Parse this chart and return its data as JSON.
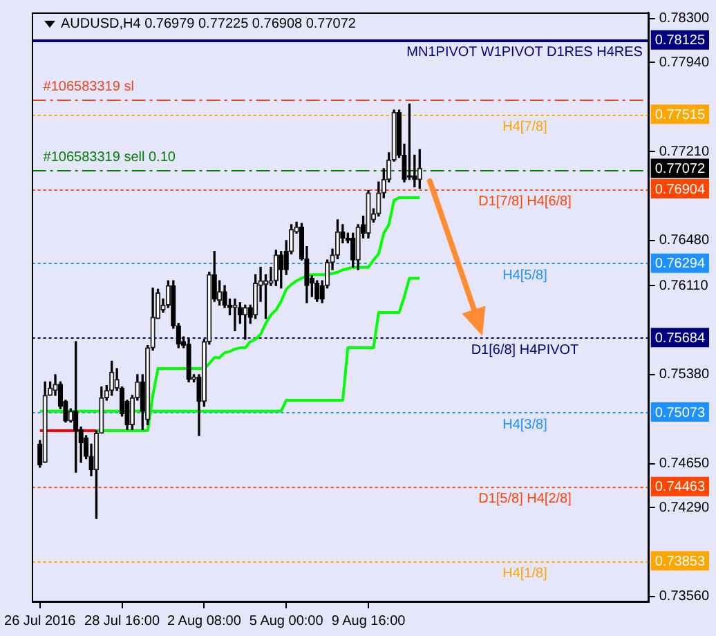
{
  "chart_data": {
    "type": "candlestick",
    "title": "AUDUSD,H4 0.76979 0.77225 0.76908 0.77072",
    "categories": [
      "26 Jul 2016",
      null,
      null,
      null,
      null,
      null,
      null,
      null,
      null,
      null,
      null,
      null,
      null,
      null,
      null,
      null,
      "28 Jul 16:00",
      null,
      null,
      null,
      null,
      null,
      null,
      null,
      null,
      null,
      null,
      null,
      null,
      null,
      null,
      null,
      "2 Aug 08:00",
      null,
      null,
      null,
      null,
      null,
      null,
      null,
      null,
      null,
      null,
      null,
      null,
      null,
      null,
      null,
      "5 Aug 00:00",
      null,
      null,
      null,
      null,
      null,
      null,
      null,
      null,
      null,
      null,
      null,
      null,
      null,
      null,
      null,
      "9 Aug 16:00",
      null,
      null,
      null,
      null,
      null,
      null,
      null,
      null,
      null,
      null
    ],
    "ohlc": [
      [
        0.7481,
        0.7484,
        0.7462,
        0.7464
      ],
      [
        0.7466,
        0.7532,
        0.7466,
        0.7521
      ],
      [
        0.7521,
        0.7532,
        0.7521,
        0.7527
      ],
      [
        0.7525,
        0.7538,
        0.7521,
        0.753
      ],
      [
        0.753,
        0.7532,
        0.751,
        0.7512
      ],
      [
        0.7516,
        0.7517,
        0.7499,
        0.75
      ],
      [
        0.75,
        0.751,
        0.7499,
        0.7508
      ],
      [
        0.7508,
        0.7565,
        0.7458,
        0.7492
      ],
      [
        0.7493,
        0.7495,
        0.7466,
        0.7482
      ],
      [
        0.7486,
        0.7488,
        0.7469,
        0.7471
      ],
      [
        0.7471,
        0.7481,
        0.7455,
        0.746
      ],
      [
        0.746,
        0.7492,
        0.742,
        0.749
      ],
      [
        0.749,
        0.7528,
        0.749,
        0.7519
      ],
      [
        0.7519,
        0.7529,
        0.7517,
        0.7525
      ],
      [
        0.7525,
        0.7549,
        0.7521,
        0.754
      ],
      [
        0.7527,
        0.7543,
        0.7525,
        0.7534
      ],
      [
        0.7527,
        0.7528,
        0.7504,
        0.7506
      ],
      [
        0.7516,
        0.7517,
        0.7493,
        0.7497
      ],
      [
        0.7497,
        0.7521,
        0.7493,
        0.7519
      ],
      [
        0.7519,
        0.7538,
        0.7517,
        0.7532
      ],
      [
        0.7532,
        0.7538,
        0.7493,
        0.7508
      ],
      [
        0.7501,
        0.7562,
        0.7497,
        0.756
      ],
      [
        0.756,
        0.7609,
        0.7558,
        0.7585
      ],
      [
        0.7584,
        0.7608,
        0.7584,
        0.7605
      ],
      [
        0.7591,
        0.76,
        0.7589,
        0.7595
      ],
      [
        0.7595,
        0.7615,
        0.7593,
        0.7611
      ],
      [
        0.7611,
        0.7615,
        0.7576,
        0.7578
      ],
      [
        0.7578,
        0.758,
        0.756,
        0.7563
      ],
      [
        0.7565,
        0.7569,
        0.756,
        0.7562
      ],
      [
        0.7563,
        0.7567,
        0.7532,
        0.7534
      ],
      [
        0.7534,
        0.7538,
        0.7532,
        0.7536
      ],
      [
        0.7536,
        0.7538,
        0.7488,
        0.7516
      ],
      [
        0.7516,
        0.7567,
        0.7512,
        0.7565
      ],
      [
        0.7565,
        0.7622,
        0.7563,
        0.762
      ],
      [
        0.762,
        0.7639,
        0.7598,
        0.76
      ],
      [
        0.7599,
        0.7615,
        0.7595,
        0.7606
      ],
      [
        0.7606,
        0.7611,
        0.7593,
        0.7595
      ],
      [
        0.7595,
        0.76,
        0.7587,
        0.7593
      ],
      [
        0.7593,
        0.76,
        0.7574,
        0.7595
      ],
      [
        0.7593,
        0.7597,
        0.758,
        0.7587
      ],
      [
        0.7587,
        0.7595,
        0.7567,
        0.7593
      ],
      [
        0.7593,
        0.7595,
        0.758,
        0.7585
      ],
      [
        0.7587,
        0.762,
        0.7584,
        0.7613
      ],
      [
        0.7611,
        0.7626,
        0.7598,
        0.7615
      ],
      [
        0.7612,
        0.762,
        0.7584,
        0.7615
      ],
      [
        0.7613,
        0.7626,
        0.7611,
        0.7615
      ],
      [
        0.7615,
        0.764,
        0.7611,
        0.7636
      ],
      [
        0.7636,
        0.7639,
        0.7609,
        0.7624
      ],
      [
        0.7639,
        0.7648,
        0.762,
        0.7624
      ],
      [
        0.7639,
        0.7661,
        0.7637,
        0.7657
      ],
      [
        0.7655,
        0.7663,
        0.7654,
        0.7659
      ],
      [
        0.7659,
        0.7662,
        0.7632,
        0.7633
      ],
      [
        0.7633,
        0.7643,
        0.7597,
        0.7611
      ],
      [
        0.7617,
        0.7619,
        0.7602,
        0.7613
      ],
      [
        0.7613,
        0.7615,
        0.7598,
        0.76
      ],
      [
        0.7611,
        0.7615,
        0.7597,
        0.76
      ],
      [
        0.7611,
        0.7632,
        0.7609,
        0.763
      ],
      [
        0.763,
        0.7641,
        0.7624,
        0.7636
      ],
      [
        0.7636,
        0.7665,
        0.7633,
        0.7655
      ],
      [
        0.7655,
        0.7661,
        0.7646,
        0.765
      ],
      [
        0.765,
        0.7654,
        0.7646,
        0.7648
      ],
      [
        0.765,
        0.7654,
        0.7626,
        0.7632
      ],
      [
        0.7632,
        0.7661,
        0.7624,
        0.7659
      ],
      [
        0.7661,
        0.7668,
        0.765,
        0.7654
      ],
      [
        0.7654,
        0.7689,
        0.765,
        0.7687
      ],
      [
        0.7665,
        0.7674,
        0.7663,
        0.767
      ],
      [
        0.767,
        0.7696,
        0.7668,
        0.7687
      ],
      [
        0.7687,
        0.7707,
        0.7683,
        0.7698
      ],
      [
        0.7698,
        0.772,
        0.7696,
        0.7714
      ],
      [
        0.7714,
        0.7755,
        0.7713,
        0.7753
      ],
      [
        0.7753,
        0.7755,
        0.7716,
        0.7718
      ],
      [
        0.7718,
        0.7727,
        0.7696,
        0.7698
      ],
      [
        0.7701,
        0.776,
        0.7698,
        0.77
      ],
      [
        0.7701,
        0.7718,
        0.7692,
        0.7698
      ],
      [
        0.76979,
        0.77225,
        0.76908,
        0.77072
      ]
    ],
    "series": [
      {
        "type": "line",
        "color": "#ff0000",
        "values": [
          0.7492,
          0.7492,
          0.7492,
          0.7492,
          0.7492,
          0.7492,
          0.7492,
          0.7492,
          0.7492,
          0.7492,
          0.7492,
          0.7492,
          null,
          null,
          null,
          null,
          null,
          null,
          null,
          null,
          null,
          null,
          null,
          null,
          null,
          null,
          null,
          null,
          null,
          null,
          null,
          null,
          null,
          null,
          null,
          null,
          null,
          null,
          null,
          null,
          null,
          null,
          null,
          null,
          null,
          null,
          null,
          null,
          null,
          null,
          null,
          null,
          null,
          null,
          null,
          null,
          null,
          null,
          null,
          null,
          null,
          null,
          null,
          null,
          null,
          null,
          null,
          null,
          null,
          null,
          null,
          null,
          null,
          null,
          null
        ]
      },
      {
        "type": "line",
        "color": "#00ff00",
        "values": [
          null,
          null,
          null,
          null,
          null,
          null,
          null,
          null,
          null,
          null,
          null,
          0.7492,
          0.7492,
          0.7492,
          0.7492,
          0.7492,
          0.7492,
          0.7492,
          0.7492,
          0.7492,
          0.7492,
          0.7492,
          0.7521,
          0.7543,
          0.7543,
          0.7543,
          0.7543,
          0.7543,
          0.7543,
          0.7543,
          0.7543,
          0.7543,
          0.7543,
          0.7547,
          0.7552,
          0.7552,
          0.7556,
          0.7557,
          0.7559,
          0.756,
          0.756,
          0.7565,
          0.7567,
          0.7571,
          0.758,
          0.7587,
          0.7591,
          0.7598,
          0.7608,
          0.7612,
          0.7615,
          0.7617,
          0.7619,
          0.762,
          0.762,
          0.762,
          0.762,
          0.7621,
          0.7622,
          0.7624,
          0.7625,
          0.7626,
          0.7626,
          0.7626,
          0.7626,
          0.7632,
          0.7637,
          0.7654,
          0.7661,
          0.7681,
          0.7683,
          0.7683,
          0.7683,
          0.7683,
          0.7683
        ]
      },
      {
        "type": "line",
        "color": "#00ff00",
        "values": [
          0.7508,
          0.7508,
          0.7508,
          0.7508,
          0.7508,
          0.7508,
          0.7508,
          0.7508,
          0.7508,
          0.7508,
          0.7508,
          0.7508,
          0.7508,
          0.7508,
          0.7508,
          0.7508,
          0.7508,
          0.7508,
          0.7508,
          0.7508,
          0.7508,
          0.7508,
          0.7508,
          0.7508,
          0.7508,
          0.7508,
          0.7508,
          0.7508,
          0.7508,
          0.7508,
          0.7508,
          0.7508,
          0.7508,
          0.7508,
          0.7508,
          0.7508,
          0.7508,
          0.7508,
          0.7508,
          0.7508,
          0.7508,
          0.7508,
          0.7508,
          0.7508,
          0.7508,
          0.7508,
          0.7508,
          0.7508,
          0.7517,
          0.7517,
          0.7517,
          0.7517,
          0.7517,
          0.7517,
          0.7517,
          0.7517,
          0.7517,
          0.7517,
          0.7517,
          0.7517,
          0.756,
          0.756,
          0.756,
          0.756,
          0.756,
          0.756,
          0.7589,
          0.7589,
          0.7589,
          0.7589,
          0.7589,
          0.7602,
          0.7617,
          0.7617,
          0.7617
        ]
      }
    ],
    "ylim": [
      0.7352,
      0.7835
    ],
    "yticks": [
      {
        "value": 0.783,
        "label": "0.78300"
      },
      {
        "value": 0.7794,
        "label": "0.77940"
      },
      {
        "value": 0.7721,
        "label": "0.77210"
      },
      {
        "value": 0.7648,
        "label": "0.76480"
      },
      {
        "value": 0.7611,
        "label": "0.76110"
      },
      {
        "value": 0.7538,
        "label": "0.75380"
      },
      {
        "value": 0.7465,
        "label": "0.74650"
      },
      {
        "value": 0.7429,
        "label": "0.74290"
      },
      {
        "value": 0.7356,
        "label": "0.73560"
      }
    ],
    "annotations": [
      "0.78125",
      "0.77515",
      "0.77072",
      "0.76904",
      "0.76294",
      "0.75684",
      "0.75073",
      "0.74463",
      "0.73853"
    ],
    "ref_lines": [
      {
        "axis": "y",
        "value": 0.78125,
        "label": "MN1PIVOT W1PIVOT D1RES H4RES",
        "color": "#000080",
        "line_style": "solid"
      },
      {
        "axis": "y",
        "value": 0.7764,
        "label": "#106583319 sl",
        "color": "#e8461e",
        "line_style": "dashed"
      },
      {
        "axis": "y",
        "value": 0.77515,
        "label": "H4[7/8]",
        "color": "#ffa500",
        "line_style": "dotted"
      },
      {
        "axis": "y",
        "value": 0.7706,
        "label": "#106583319 sell 0.10",
        "color": "#008000",
        "line_style": "dashed"
      },
      {
        "axis": "y",
        "value": 0.76904,
        "label": "D1[7/8] H4[6/8]",
        "color": "#ff4500",
        "line_style": "dotted"
      },
      {
        "axis": "y",
        "value": 0.76294,
        "label": "H4[5/8]",
        "color": "#1e90ff",
        "line_style": "dotted"
      },
      {
        "axis": "y",
        "value": 0.75684,
        "label": "D1[6/8] H4PIVOT",
        "color": "#000080",
        "line_style": "dotted"
      },
      {
        "axis": "y",
        "value": 0.75073,
        "label": "H4[3/8]",
        "color": "#1e90ff",
        "line_style": "dotted"
      },
      {
        "axis": "y",
        "value": 0.74463,
        "label": "D1[5/8] H4[2/8]",
        "color": "#ff4500",
        "line_style": "dotted"
      },
      {
        "axis": "y",
        "value": 0.73853,
        "label": "H4[1/8]",
        "color": "#ffa500",
        "line_style": "dotted"
      }
    ]
  }
}
